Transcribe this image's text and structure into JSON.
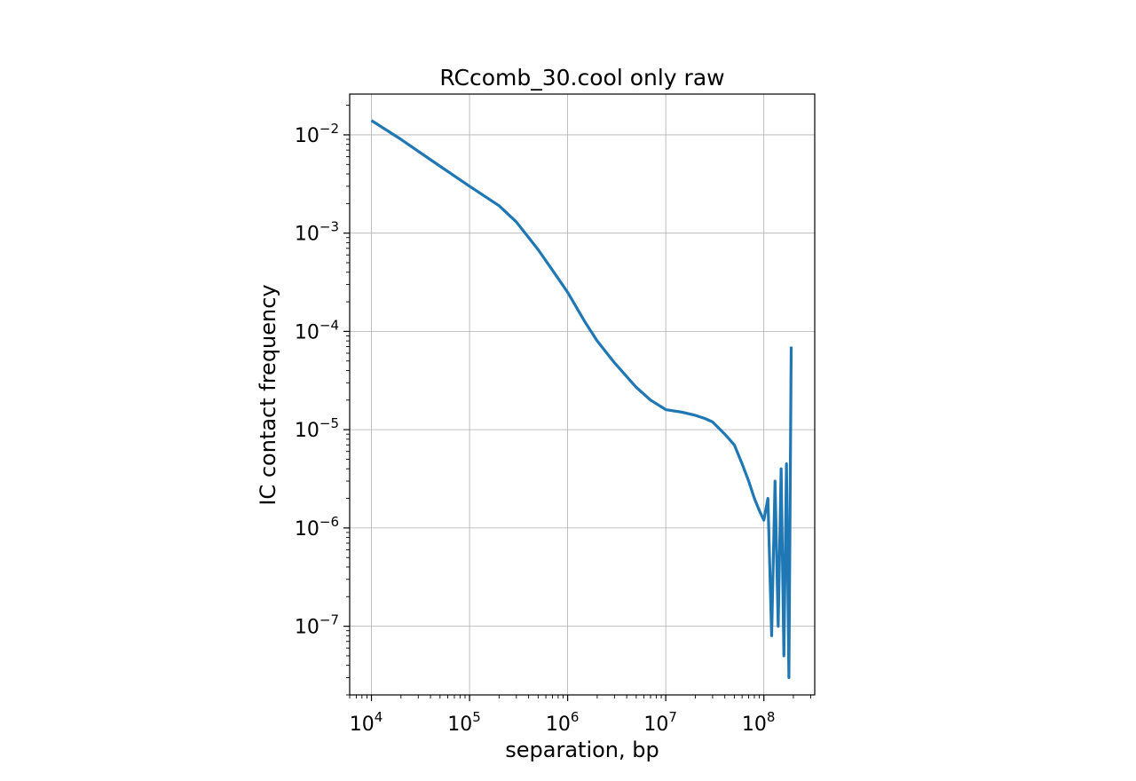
{
  "chart_data": {
    "type": "line",
    "title": "RCcomb_30.cool only raw",
    "xlabel": "separation, bp",
    "ylabel": "IC contact frequency",
    "xscale": "log",
    "yscale": "log",
    "xlim": [
      6000,
      330000000
    ],
    "ylim": [
      2e-08,
      0.026
    ],
    "grid": true,
    "x_ticks": [
      {
        "value": 10000,
        "base": "10",
        "exp": "4"
      },
      {
        "value": 100000,
        "base": "10",
        "exp": "5"
      },
      {
        "value": 1000000,
        "base": "10",
        "exp": "6"
      },
      {
        "value": 10000000,
        "base": "10",
        "exp": "7"
      },
      {
        "value": 100000000,
        "base": "10",
        "exp": "8"
      }
    ],
    "y_ticks": [
      {
        "value": 0.01,
        "base": "10",
        "exp": "−2"
      },
      {
        "value": 0.001,
        "base": "10",
        "exp": "−3"
      },
      {
        "value": 0.0001,
        "base": "10",
        "exp": "−4"
      },
      {
        "value": 1e-05,
        "base": "10",
        "exp": "−5"
      },
      {
        "value": 1e-06,
        "base": "10",
        "exp": "−6"
      },
      {
        "value": 1e-07,
        "base": "10",
        "exp": "−7"
      }
    ],
    "series": [
      {
        "color": "#1f77b4",
        "x": [
          10000,
          20000,
          50000,
          100000,
          200000,
          300000,
          500000,
          700000,
          1000000,
          1500000,
          2000000,
          3000000,
          5000000,
          7000000,
          10000000,
          15000000,
          20000000,
          25000000,
          30000000,
          40000000,
          50000000,
          60000000,
          70000000,
          80000000,
          90000000,
          100000000,
          110000000,
          120000000,
          130000000,
          140000000,
          150000000,
          160000000,
          170000000,
          180000000,
          190000000
        ],
        "y": [
          0.014,
          0.009,
          0.0048,
          0.003,
          0.0019,
          0.0013,
          0.00068,
          0.00042,
          0.00025,
          0.000125,
          8e-05,
          4.8e-05,
          2.7e-05,
          2e-05,
          1.6e-05,
          1.5e-05,
          1.4e-05,
          1.3e-05,
          1.2e-05,
          9e-06,
          7e-06,
          4.5e-06,
          3e-06,
          2e-06,
          1.5e-06,
          1.2e-06,
          2e-06,
          8e-08,
          3e-06,
          1e-07,
          4e-06,
          5e-08,
          4.5e-06,
          3e-08,
          7e-05
        ]
      }
    ]
  }
}
